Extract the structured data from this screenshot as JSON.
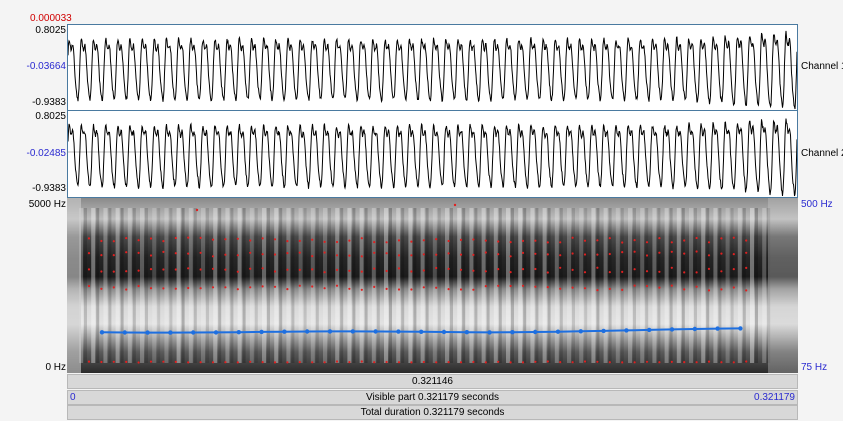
{
  "cursor_time": "0.000033",
  "channels": [
    {
      "name": "Channel 1",
      "max_label": "0.8025",
      "zero_label": "-0.03664",
      "min_label": "-0.9383",
      "seed": 11
    },
    {
      "name": "Channel 2",
      "max_label": "0.8025",
      "zero_label": "-0.02485",
      "min_label": "-0.9383",
      "seed": 37
    }
  ],
  "spectrogram": {
    "freq_top_label": "5000 Hz",
    "freq_bottom_label": "0 Hz",
    "pitch_top_label": "500 Hz",
    "pitch_bottom_label": "75 Hz",
    "pitch_line_color": "#1e6fe0",
    "formant_color": "#e02020"
  },
  "selection_bar": {
    "value": "0.321146"
  },
  "visible_bar": {
    "start": "0",
    "text": "Visible part 0.321179 seconds",
    "end": "0.321179"
  },
  "total_bar": {
    "text": "Total duration 0.321179 seconds"
  }
}
